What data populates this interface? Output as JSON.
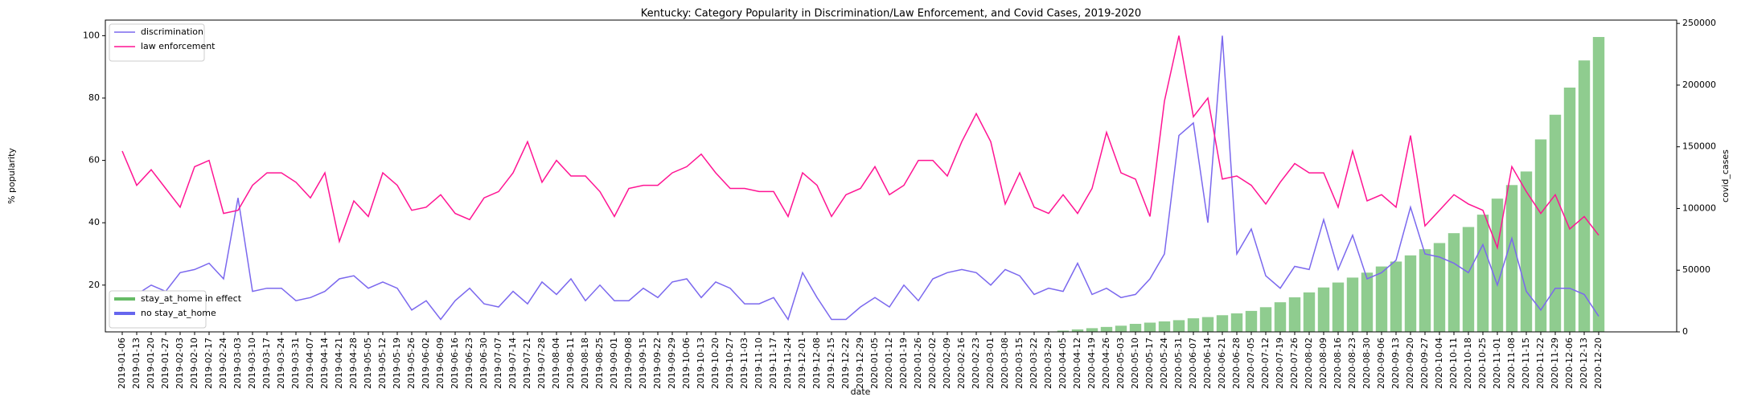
{
  "chart_data": {
    "type": "line",
    "title": "Kentucky: Category Popularity in Discrimination/Law Enforcement, and Covid Cases, 2019-2020",
    "xlabel": "date",
    "ylabel": "% popularity",
    "y2label": "covid_cases",
    "categories": [
      "2019-01-06",
      "2019-01-13",
      "2019-01-20",
      "2019-01-27",
      "2019-02-03",
      "2019-02-10",
      "2019-02-17",
      "2019-02-24",
      "2019-03-03",
      "2019-03-10",
      "2019-03-17",
      "2019-03-24",
      "2019-03-31",
      "2019-04-07",
      "2019-04-14",
      "2019-04-21",
      "2019-04-28",
      "2019-05-05",
      "2019-05-12",
      "2019-05-19",
      "2019-05-26",
      "2019-06-02",
      "2019-06-09",
      "2019-06-16",
      "2019-06-23",
      "2019-06-30",
      "2019-07-07",
      "2019-07-14",
      "2019-07-21",
      "2019-07-28",
      "2019-08-04",
      "2019-08-11",
      "2019-08-18",
      "2019-08-25",
      "2019-09-01",
      "2019-09-08",
      "2019-09-15",
      "2019-09-22",
      "2019-09-29",
      "2019-10-06",
      "2019-10-13",
      "2019-10-20",
      "2019-10-27",
      "2019-11-03",
      "2019-11-10",
      "2019-11-17",
      "2019-11-24",
      "2019-12-01",
      "2019-12-08",
      "2019-12-15",
      "2019-12-22",
      "2019-12-29",
      "2020-01-05",
      "2020-01-12",
      "2020-01-19",
      "2020-01-26",
      "2020-02-02",
      "2020-02-09",
      "2020-02-16",
      "2020-02-23",
      "2020-03-01",
      "2020-03-08",
      "2020-03-15",
      "2020-03-22",
      "2020-03-29",
      "2020-04-05",
      "2020-04-12",
      "2020-04-19",
      "2020-04-26",
      "2020-05-03",
      "2020-05-10",
      "2020-05-17",
      "2020-05-24",
      "2020-05-31",
      "2020-06-07",
      "2020-06-14",
      "2020-06-21",
      "2020-06-28",
      "2020-07-05",
      "2020-07-12",
      "2020-07-19",
      "2020-07-26",
      "2020-08-02",
      "2020-08-09",
      "2020-08-16",
      "2020-08-23",
      "2020-08-30",
      "2020-09-06",
      "2020-09-13",
      "2020-09-20",
      "2020-09-27",
      "2020-10-04",
      "2020-10-11",
      "2020-10-18",
      "2020-10-25",
      "2020-11-01",
      "2020-11-08",
      "2020-11-15",
      "2020-11-22",
      "2020-11-29",
      "2020-12-06",
      "2020-12-13",
      "2020-12-20"
    ],
    "series": [
      {
        "name": "discrimination",
        "color": "#7b68ee",
        "values": [
          18,
          17,
          20,
          18,
          24,
          25,
          27,
          22,
          48,
          18,
          19,
          19,
          15,
          16,
          18,
          22,
          23,
          19,
          21,
          19,
          12,
          15,
          9,
          15,
          19,
          14,
          13,
          18,
          14,
          21,
          17,
          22,
          15,
          20,
          15,
          15,
          19,
          16,
          21,
          22,
          16,
          21,
          19,
          14,
          14,
          16,
          9,
          24,
          16,
          9,
          9,
          13,
          16,
          13,
          20,
          15,
          22,
          24,
          25,
          24,
          20,
          25,
          23,
          17,
          19,
          18,
          27,
          17,
          19,
          16,
          17,
          22,
          30,
          68,
          72,
          40,
          100,
          30,
          38,
          23,
          19,
          26,
          25,
          41,
          25,
          36,
          22,
          24,
          28,
          45,
          30,
          29,
          27,
          24,
          33,
          20,
          35,
          18,
          12,
          19,
          19,
          17,
          10
        ]
      },
      {
        "name": "law enforcement",
        "color": "#ff1493",
        "values": [
          63,
          52,
          57,
          51,
          45,
          58,
          60,
          43,
          44,
          52,
          56,
          56,
          53,
          48,
          56,
          34,
          47,
          42,
          56,
          52,
          44,
          45,
          49,
          43,
          41,
          48,
          50,
          56,
          66,
          53,
          60,
          55,
          55,
          50,
          42,
          51,
          52,
          52,
          56,
          58,
          62,
          56,
          51,
          51,
          50,
          50,
          42,
          56,
          52,
          42,
          49,
          51,
          58,
          49,
          52,
          60,
          60,
          55,
          66,
          75,
          66,
          46,
          56,
          45,
          43,
          49,
          43,
          51,
          69,
          56,
          54,
          42,
          79,
          100,
          74,
          80,
          54,
          55,
          52,
          46,
          53,
          59,
          56,
          56,
          45,
          63,
          47,
          49,
          45,
          68,
          39,
          44,
          49,
          46,
          44,
          32,
          58,
          50,
          43,
          49,
          38,
          42,
          36
        ]
      },
      {
        "name": "covid_cases",
        "color": "#8fcc8f",
        "axis": "y2",
        "type": "bar",
        "values": [
          null,
          null,
          null,
          null,
          null,
          null,
          null,
          null,
          null,
          null,
          null,
          null,
          null,
          null,
          null,
          null,
          null,
          null,
          null,
          null,
          null,
          null,
          null,
          null,
          null,
          null,
          null,
          null,
          null,
          null,
          null,
          null,
          null,
          null,
          null,
          null,
          null,
          null,
          null,
          null,
          null,
          null,
          null,
          null,
          null,
          null,
          null,
          null,
          null,
          null,
          null,
          null,
          null,
          null,
          null,
          null,
          null,
          null,
          null,
          null,
          null,
          null,
          null,
          null,
          null,
          1000,
          2000,
          3000,
          4000,
          5000,
          6500,
          7500,
          8500,
          9500,
          11000,
          12000,
          13500,
          15000,
          17000,
          20000,
          24000,
          28000,
          32000,
          36000,
          40000,
          44000,
          48000,
          53000,
          57000,
          62000,
          67000,
          72000,
          80000,
          85000,
          95000,
          108000,
          119000,
          130000,
          156000,
          176000,
          198000,
          220000,
          239000
        ]
      }
    ],
    "legend2": [
      {
        "name": "stay_at_home in effect",
        "color": "#66bb66"
      },
      {
        "name": "no stay_at_home",
        "color": "#6666ee"
      }
    ],
    "ylim": [
      5,
      105
    ],
    "yticks": [
      20,
      40,
      60,
      80,
      100
    ],
    "y2lim": [
      0,
      252700
    ],
    "y2ticks": [
      0,
      50000,
      100000,
      150000,
      200000,
      250000
    ],
    "legend": "upper left",
    "legend2_loc": "lower left"
  }
}
